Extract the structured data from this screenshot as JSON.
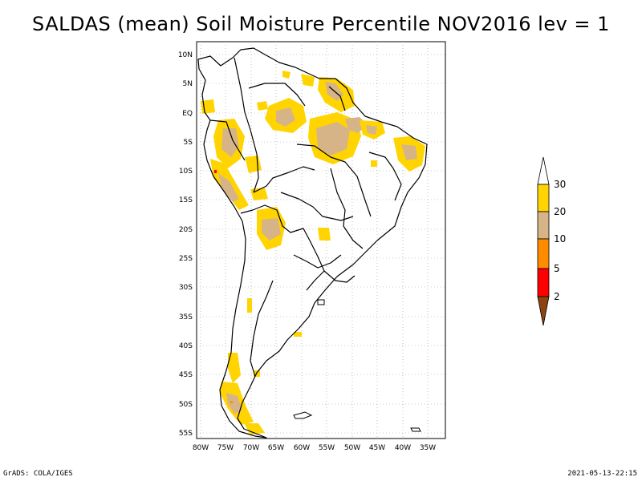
{
  "title": "SALDAS (mean) Soil Moisture Percentile NOV2016 lev = 1",
  "footer": {
    "credit": "GrADS: COLA/IGES",
    "timestamp": "2021-05-13-22:15"
  },
  "axes": {
    "lat_ticks": [
      "10N",
      "5N",
      "EQ",
      "5S",
      "10S",
      "15S",
      "20S",
      "25S",
      "30S",
      "35S",
      "40S",
      "45S",
      "50S",
      "55S"
    ],
    "lon_ticks": [
      "80W",
      "75W",
      "70W",
      "65W",
      "60W",
      "55W",
      "50W",
      "45W",
      "40W",
      "35W"
    ]
  },
  "colorbar": {
    "labels": [
      "30",
      "20",
      "10",
      "5",
      "2"
    ],
    "colors": {
      "above_30": "#ffffff",
      "c20_30": "#ffd400",
      "c10_20": "#d7b487",
      "c5_10": "#ff8c00",
      "c2_5": "#ff0000",
      "below_2": "#8b4513"
    }
  }
}
